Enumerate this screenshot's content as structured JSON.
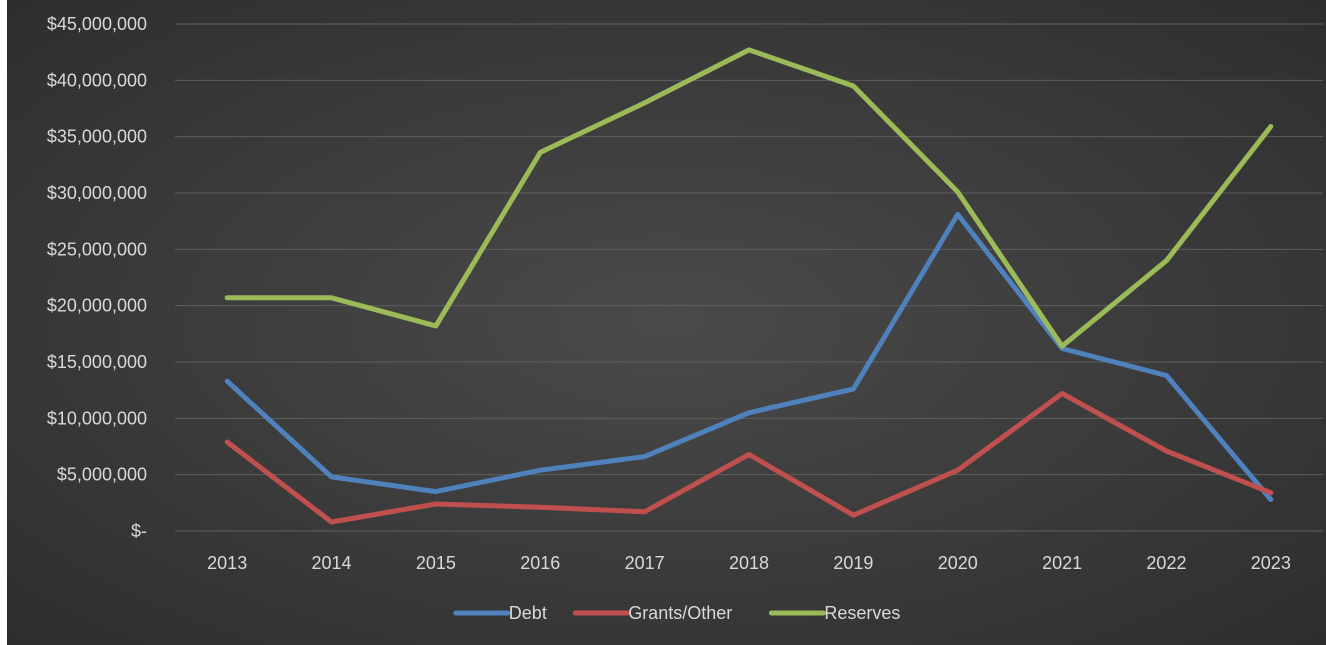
{
  "chart_data": {
    "type": "line",
    "title": "",
    "xlabel": "",
    "ylabel": "",
    "categories": [
      "2013",
      "2014",
      "2015",
      "2016",
      "2017",
      "2018",
      "2019",
      "2020",
      "2021",
      "2022",
      "2023"
    ],
    "y_tick_labels": [
      "$-",
      "$5,000,000",
      "$10,000,000",
      "$15,000,000",
      "$20,000,000",
      "$25,000,000",
      "$30,000,000",
      "$35,000,000",
      "$40,000,000",
      "$45,000,000"
    ],
    "ylim": [
      0,
      45000000
    ],
    "y_step": 5000000,
    "grid": true,
    "legend_position": "bottom",
    "series": [
      {
        "name": "Debt",
        "color": "#4f81bd",
        "values": [
          13300000,
          4800000,
          3500000,
          5400000,
          6600000,
          10500000,
          12600000,
          28100000,
          16200000,
          13800000,
          2800000
        ]
      },
      {
        "name": "Grants/Other",
        "color": "#c0504d",
        "values": [
          7900000,
          800000,
          2400000,
          2100000,
          1700000,
          6800000,
          1400000,
          5400000,
          12200000,
          7100000,
          3400000
        ]
      },
      {
        "name": "Reserves",
        "color": "#9bbb59",
        "values": [
          20700000,
          20700000,
          18200000,
          33600000,
          38000000,
          42700000,
          39500000,
          30100000,
          16400000,
          24000000,
          35900000
        ]
      }
    ]
  }
}
